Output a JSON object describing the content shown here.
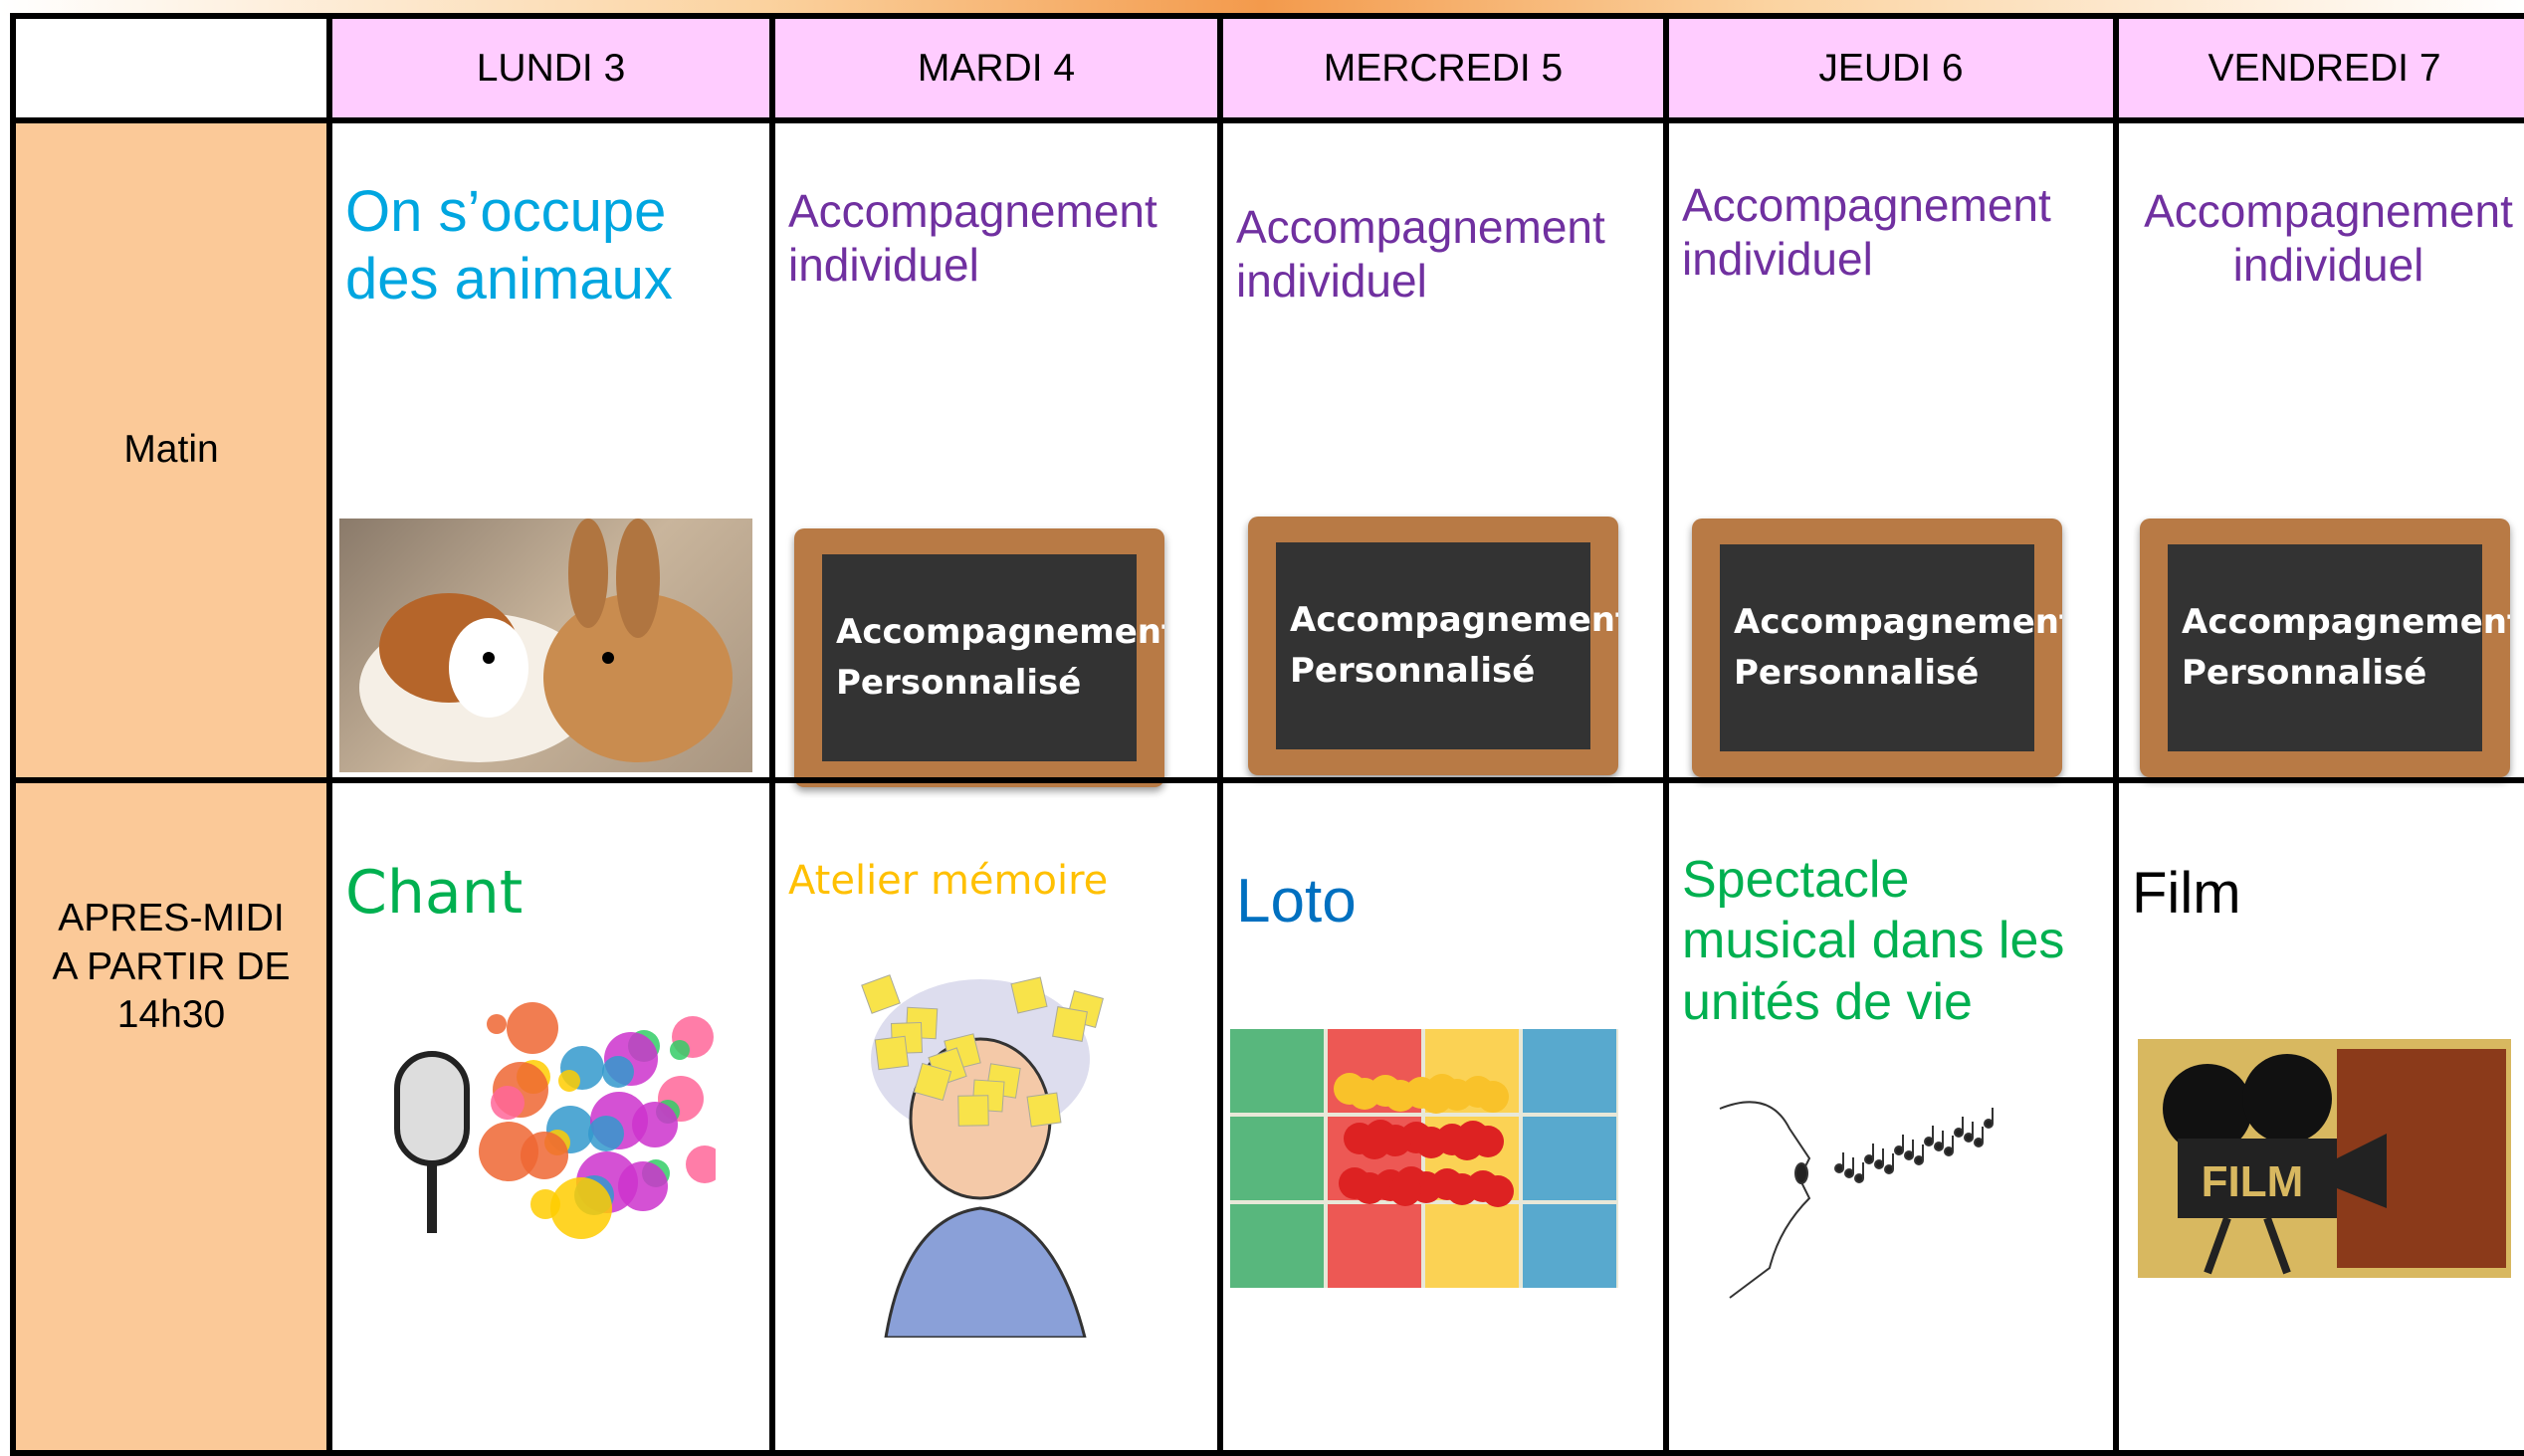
{
  "table": {
    "header": [
      "LUNDI 3",
      "MARDI 4",
      "MERCREDI 5",
      "JEUDI 6",
      "VENDREDI 7"
    ],
    "rows": [
      {
        "label": [
          "Matin"
        ],
        "cells": [
          [
            "On s’occupe",
            "des animaux"
          ],
          [
            "Accompagnement",
            "individuel"
          ],
          [
            "Accompagnement",
            "individuel"
          ],
          [
            "Accompagnement",
            "individuel"
          ],
          [
            "Accompagnement",
            "individuel"
          ]
        ]
      },
      {
        "label": [
          "APRES-MIDI",
          "A PARTIR DE",
          "14h30"
        ],
        "cells": [
          [
            "Chant"
          ],
          [
            "Atelier mémoire"
          ],
          [
            "Loto"
          ],
          [
            "Spectacle",
            "musical dans les",
            "unités de vie"
          ],
          [
            "Film"
          ]
        ]
      }
    ]
  },
  "chalkboard": [
    "Accompagnement",
    "Personnalisé"
  ],
  "film_sign": "FILM"
}
